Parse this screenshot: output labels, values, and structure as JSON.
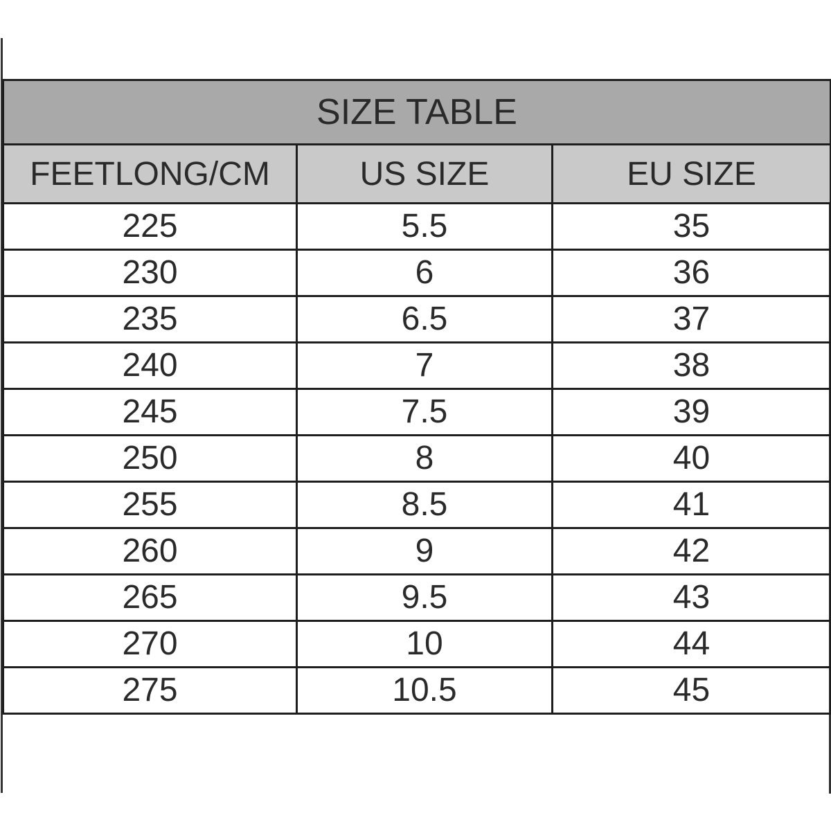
{
  "title": "SIZE TABLE",
  "headers": [
    "FEETLONG/CM",
    "US SIZE",
    "EU SIZE"
  ],
  "rows": [
    [
      "225",
      "5.5",
      "35"
    ],
    [
      "230",
      "6",
      "36"
    ],
    [
      "235",
      "6.5",
      "37"
    ],
    [
      "240",
      "7",
      "38"
    ],
    [
      "245",
      "7.5",
      "39"
    ],
    [
      "250",
      "8",
      "40"
    ],
    [
      "255",
      "8.5",
      "41"
    ],
    [
      "260",
      "9",
      "42"
    ],
    [
      "265",
      "9.5",
      "43"
    ],
    [
      "270",
      "10",
      "44"
    ],
    [
      "275",
      "10.5",
      "45"
    ]
  ],
  "colors": {
    "title_bg": "#a9a9a9",
    "header_bg": "#c9c9c9",
    "border": "#1e1e1e"
  }
}
